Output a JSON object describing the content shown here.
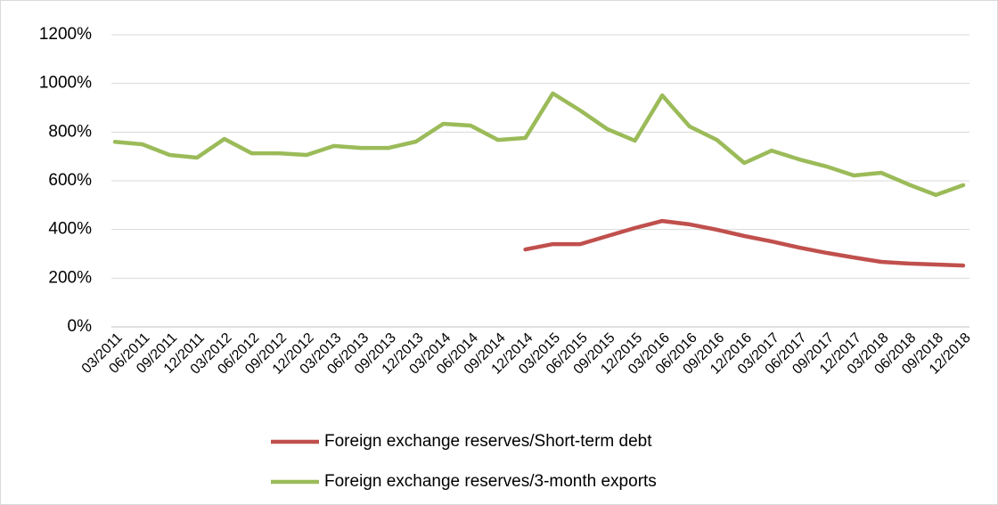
{
  "chart_data": {
    "type": "line",
    "categories": [
      "03/2011",
      "06/2011",
      "09/2011",
      "12/2011",
      "03/2012",
      "06/2012",
      "09/2012",
      "12/2012",
      "03/2013",
      "06/2013",
      "09/2013",
      "12/2013",
      "03/2014",
      "06/2014",
      "09/2014",
      "12/2014",
      "03/2015",
      "06/2015",
      "09/2015",
      "12/2015",
      "03/2016",
      "06/2016",
      "09/2016",
      "12/2016",
      "03/2017",
      "06/2017",
      "09/2017",
      "12/2017",
      "03/2018",
      "06/2018",
      "09/2018",
      "12/2018"
    ],
    "series": [
      {
        "name": "Foreign exchange reserves/Short-term debt",
        "color": "#c0504d",
        "values": [
          null,
          null,
          null,
          null,
          null,
          null,
          null,
          null,
          null,
          null,
          null,
          null,
          null,
          null,
          null,
          318,
          340,
          340,
          373,
          406,
          435,
          421,
          399,
          373,
          351,
          326,
          304,
          285,
          267,
          260,
          256,
          252
        ]
      },
      {
        "name": "Foreign exchange reserves/3-month exports",
        "color": "#9bbb59",
        "values": [
          760,
          750,
          706,
          695,
          772,
          713,
          713,
          706,
          743,
          735,
          735,
          761,
          834,
          827,
          768,
          776,
          959,
          889,
          812,
          765,
          951,
          823,
          768,
          673,
          724,
          688,
          659,
          622,
          633,
          585,
          542,
          582
        ]
      }
    ],
    "ylim": [
      0,
      1200
    ],
    "yticks": [
      {
        "value": 0,
        "label": "0%"
      },
      {
        "value": 200,
        "label": "200%"
      },
      {
        "value": 400,
        "label": "400%"
      },
      {
        "value": 600,
        "label": "600%"
      },
      {
        "value": 800,
        "label": "800%"
      },
      {
        "value": 1000,
        "label": "1000%"
      },
      {
        "value": 1200,
        "label": "1200%"
      }
    ],
    "grid": true,
    "legend": "bottom"
  }
}
